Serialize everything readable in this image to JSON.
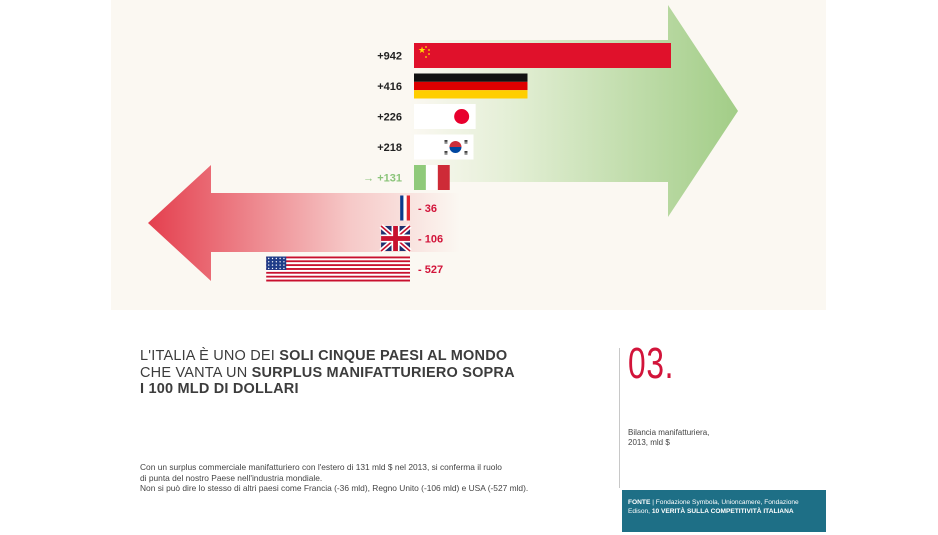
{
  "chart_data": {
    "type": "bar",
    "orientation": "horizontal-diverging",
    "categories": [
      "Cina",
      "Germania",
      "Giappone",
      "Corea del Sud",
      "Italia",
      "Francia",
      "Regno Unito",
      "USA"
    ],
    "values": [
      942,
      416,
      226,
      218,
      131,
      -36,
      -106,
      -527
    ],
    "data_labels": [
      "+942",
      "+416",
      "+226",
      "+218",
      "+131",
      "- 36",
      "- 106",
      "- 527"
    ],
    "highlight_prefix": "→",
    "colors": {
      "positive_arrow": "#a9d08e",
      "negative_arrow": "#e8505b",
      "positive_label": "#222222",
      "negative_label": "#d2143a",
      "highlight_label": "#8bc47a"
    }
  },
  "headline": {
    "part1": "L'ITALIA È UNO DEI ",
    "part2": "SOLI CINQUE PAESI AL MONDO",
    "part3": "CHE VANTA UN ",
    "part4": "SURPLUS MANIFATTURIERO SOPRA",
    "part5": "I 100 MLD DI DOLLARI"
  },
  "body": {
    "line1": "Con un surplus commerciale manifatturiero con l'estero di 131 mld $ nel 2013, si conferma il ruolo",
    "line2": "di punta del nostro Paese nell'industria mondiale.",
    "line3": "Non si può dire lo stesso di altri paesi come Francia (-36 mld), Regno Unito (-106 mld) e USA (-527 mld)."
  },
  "figure": {
    "number": "03.",
    "caption_line1": "Bilancia manifatturiera,",
    "caption_line2": "2013, mld $"
  },
  "source": {
    "label": "FONTE",
    "sep": " | ",
    "text1": "Fondazione Symbola, Unioncamere, Fondazione",
    "text2a": "Edison, ",
    "text2b": "10 VERITÀ SULLA COMPETITIVITÀ ITALIANA"
  }
}
